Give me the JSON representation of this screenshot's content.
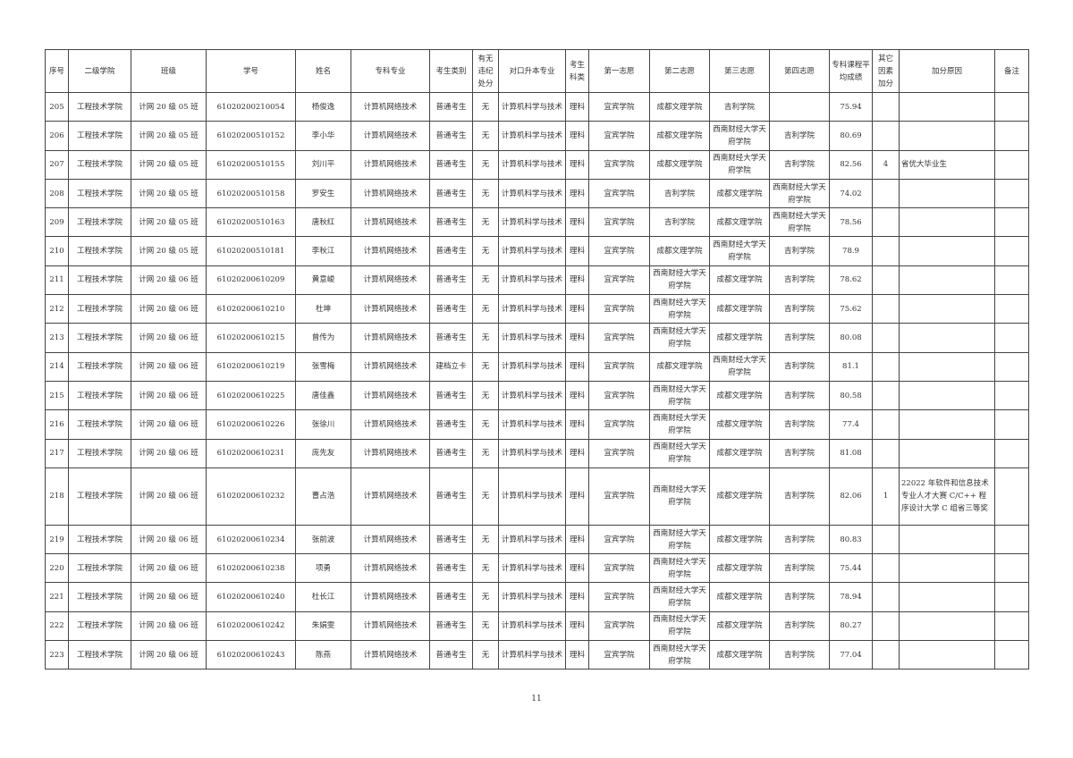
{
  "headers": [
    "序号",
    "二级学院",
    "班级",
    "学号",
    "姓名",
    "专科专业",
    "考生类别",
    "有无违纪处分",
    "对口升本专业",
    "考生科类",
    "第一志愿",
    "第二志愿",
    "第三志愿",
    "第四志愿",
    "专科课程平均成绩",
    "其它因素加分",
    "加分原因",
    "备注"
  ],
  "rows": [
    [
      "205",
      "工程技术学院",
      "计网 20 级 05 班",
      "61020200210054",
      "杨俊逸",
      "计算机网络技术",
      "普通考生",
      "无",
      "计算机科学与技术",
      "理科",
      "宜宾学院",
      "成都文理学院",
      "吉利学院",
      "",
      "75.94",
      "",
      "",
      ""
    ],
    [
      "206",
      "工程技术学院",
      "计网 20 级 05 班",
      "61020200510152",
      "李小华",
      "计算机网络技术",
      "普通考生",
      "无",
      "计算机科学与技术",
      "理科",
      "宜宾学院",
      "成都文理学院",
      "西南财经大学天府学院",
      "吉利学院",
      "80.69",
      "",
      "",
      ""
    ],
    [
      "207",
      "工程技术学院",
      "计网 20 级 05 班",
      "61020200510155",
      "刘川平",
      "计算机网络技术",
      "普通考生",
      "无",
      "计算机科学与技术",
      "理科",
      "宜宾学院",
      "成都文理学院",
      "西南财经大学天府学院",
      "吉利学院",
      "82.56",
      "4",
      "省优大毕业生",
      ""
    ],
    [
      "208",
      "工程技术学院",
      "计网 20 级 05 班",
      "61020200510158",
      "罗安生",
      "计算机网络技术",
      "普通考生",
      "无",
      "计算机科学与技术",
      "理科",
      "宜宾学院",
      "吉利学院",
      "成都文理学院",
      "西南财经大学天府学院",
      "74.02",
      "",
      "",
      ""
    ],
    [
      "209",
      "工程技术学院",
      "计网 20 级 05 班",
      "61020200510163",
      "唐秋红",
      "计算机网络技术",
      "普通考生",
      "无",
      "计算机科学与技术",
      "理科",
      "宜宾学院",
      "吉利学院",
      "成都文理学院",
      "西南财经大学天府学院",
      "78.56",
      "",
      "",
      ""
    ],
    [
      "210",
      "工程技术学院",
      "计网 20 级 05 班",
      "61020200510181",
      "李秋江",
      "计算机网络技术",
      "普通考生",
      "无",
      "计算机科学与技术",
      "理科",
      "宜宾学院",
      "成都文理学院",
      "西南财经大学天府学院",
      "吉利学院",
      "78.9",
      "",
      "",
      ""
    ],
    [
      "211",
      "工程技术学院",
      "计网 20 级 06 班",
      "61020200610209",
      "黄意峻",
      "计算机网络技术",
      "普通考生",
      "无",
      "计算机科学与技术",
      "理科",
      "宜宾学院",
      "西南财经大学天府学院",
      "成都文理学院",
      "吉利学院",
      "78.62",
      "",
      "",
      ""
    ],
    [
      "212",
      "工程技术学院",
      "计网 20 级 06 班",
      "61020200610210",
      "杜坤",
      "计算机网络技术",
      "普通考生",
      "无",
      "计算机科学与技术",
      "理科",
      "宜宾学院",
      "西南财经大学天府学院",
      "成都文理学院",
      "吉利学院",
      "75.62",
      "",
      "",
      ""
    ],
    [
      "213",
      "工程技术学院",
      "计网 20 级 06 班",
      "61020200610215",
      "曾传为",
      "计算机网络技术",
      "普通考生",
      "无",
      "计算机科学与技术",
      "理科",
      "宜宾学院",
      "西南财经大学天府学院",
      "成都文理学院",
      "吉利学院",
      "80.08",
      "",
      "",
      ""
    ],
    [
      "214",
      "工程技术学院",
      "计网 20 级 06 班",
      "61020200610219",
      "张雪梅",
      "计算机网络技术",
      "建档立卡",
      "无",
      "计算机科学与技术",
      "理科",
      "宜宾学院",
      "成都文理学院",
      "西南财经大学天府学院",
      "吉利学院",
      "81.1",
      "",
      "",
      ""
    ],
    [
      "215",
      "工程技术学院",
      "计网 20 级 06 班",
      "61020200610225",
      "唐佳鑫",
      "计算机网络技术",
      "普通考生",
      "无",
      "计算机科学与技术",
      "理科",
      "宜宾学院",
      "西南财经大学天府学院",
      "成都文理学院",
      "吉利学院",
      "80.58",
      "",
      "",
      ""
    ],
    [
      "216",
      "工程技术学院",
      "计网 20 级 06 班",
      "61020200610226",
      "张徐川",
      "计算机网络技术",
      "普通考生",
      "无",
      "计算机科学与技术",
      "理科",
      "宜宾学院",
      "西南财经大学天府学院",
      "成都文理学院",
      "吉利学院",
      "77.4",
      "",
      "",
      ""
    ],
    [
      "217",
      "工程技术学院",
      "计网 20 级 06 班",
      "61020200610231",
      "庞先友",
      "计算机网络技术",
      "普通考生",
      "无",
      "计算机科学与技术",
      "理科",
      "宜宾学院",
      "西南财经大学天府学院",
      "成都文理学院",
      "吉利学院",
      "81.08",
      "",
      "",
      ""
    ],
    [
      "218",
      "工程技术学院",
      "计网 20 级 06 班",
      "61020200610232",
      "曹占浩",
      "计算机网络技术",
      "普通考生",
      "无",
      "计算机科学与技术",
      "理科",
      "宜宾学院",
      "西南财经大学天府学院",
      "成都文理学院",
      "吉利学院",
      "82.06",
      "1",
      "22022 年软件和信息技术专业人才大赛 C/C++ 程序设计大学 C 组省三等奖",
      ""
    ],
    [
      "219",
      "工程技术学院",
      "计网 20 级 06 班",
      "61020200610234",
      "张前波",
      "计算机网络技术",
      "普通考生",
      "无",
      "计算机科学与技术",
      "理科",
      "宜宾学院",
      "西南财经大学天府学院",
      "成都文理学院",
      "吉利学院",
      "80.83",
      "",
      "",
      ""
    ],
    [
      "220",
      "工程技术学院",
      "计网 20 级 06 班",
      "61020200610238",
      "项勇",
      "计算机网络技术",
      "普通考生",
      "无",
      "计算机科学与技术",
      "理科",
      "宜宾学院",
      "西南财经大学天府学院",
      "成都文理学院",
      "吉利学院",
      "75.44",
      "",
      "",
      ""
    ],
    [
      "221",
      "工程技术学院",
      "计网 20 级 06 班",
      "61020200610240",
      "杜长江",
      "计算机网络技术",
      "普通考生",
      "无",
      "计算机科学与技术",
      "理科",
      "宜宾学院",
      "西南财经大学天府学院",
      "成都文理学院",
      "吉利学院",
      "78.94",
      "",
      "",
      ""
    ],
    [
      "222",
      "工程技术学院",
      "计网 20 级 06 班",
      "61020200610242",
      "朱娟雯",
      "计算机网络技术",
      "普通考生",
      "无",
      "计算机科学与技术",
      "理科",
      "宜宾学院",
      "西南财经大学天府学院",
      "成都文理学院",
      "吉利学院",
      "80.27",
      "",
      "",
      ""
    ],
    [
      "223",
      "工程技术学院",
      "计网 20 级 06 班",
      "61020200610243",
      "陈燕",
      "计算机网络技术",
      "普通考生",
      "无",
      "计算机科学与技术",
      "理科",
      "宜宾学院",
      "西南财经大学天府学院",
      "成都文理学院",
      "吉利学院",
      "77.04",
      "",
      "",
      ""
    ]
  ],
  "page_number": "11"
}
